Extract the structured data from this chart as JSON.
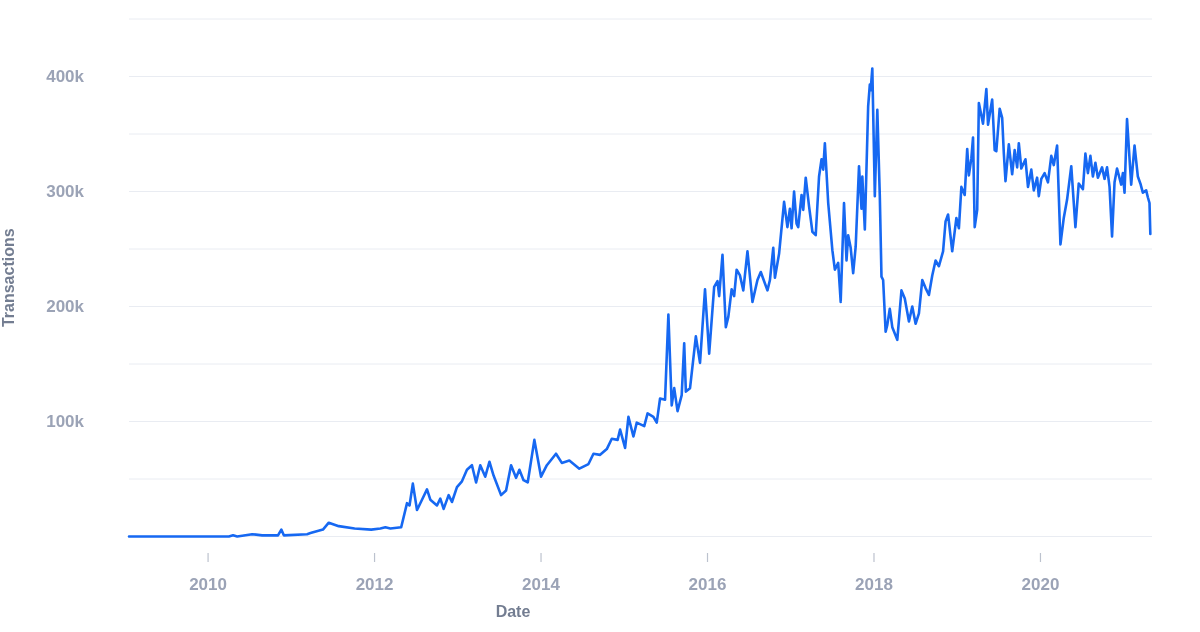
{
  "chart_data": {
    "type": "line",
    "xlabel": "Date",
    "ylabel": "Transactions",
    "x": [
      2009.05,
      2010.25,
      2010.3,
      2010.35,
      2010.53,
      2010.65,
      2010.84,
      2010.88,
      2010.91,
      2011.19,
      2011.23,
      2011.38,
      2011.45,
      2011.57,
      2011.76,
      2011.96,
      2012.07,
      2012.13,
      2012.19,
      2012.32,
      2012.39,
      2012.42,
      2012.46,
      2012.51,
      2012.57,
      2012.63,
      2012.67,
      2012.75,
      2012.79,
      2012.83,
      2012.89,
      2012.93,
      2012.99,
      2013.05,
      2013.11,
      2013.17,
      2013.22,
      2013.27,
      2013.33,
      2013.38,
      2013.43,
      2013.52,
      2013.58,
      2013.64,
      2013.7,
      2013.74,
      2013.79,
      2013.84,
      2013.92,
      2014.0,
      2014.07,
      2014.18,
      2014.25,
      2014.34,
      2014.46,
      2014.57,
      2014.63,
      2014.71,
      2014.79,
      2014.85,
      2014.92,
      2014.95,
      2015.01,
      2015.05,
      2015.11,
      2015.15,
      2015.24,
      2015.28,
      2015.35,
      2015.39,
      2015.43,
      2015.49,
      2015.53,
      2015.57,
      2015.6,
      2015.64,
      2015.69,
      2015.72,
      2015.74,
      2015.79,
      2015.86,
      2015.91,
      2015.97,
      2016.02,
      2016.08,
      2016.12,
      2016.14,
      2016.18,
      2016.22,
      2016.25,
      2016.29,
      2016.32,
      2016.35,
      2016.39,
      2016.43,
      2016.48,
      2016.54,
      2016.6,
      2016.64,
      2016.72,
      2016.75,
      2016.79,
      2016.81,
      2016.86,
      2016.88,
      2016.92,
      2016.96,
      2016.99,
      2017.01,
      2017.04,
      2017.07,
      2017.09,
      2017.13,
      2017.15,
      2017.18,
      2017.22,
      2017.26,
      2017.3,
      2017.34,
      2017.37,
      2017.39,
      2017.41,
      2017.45,
      2017.5,
      2017.53,
      2017.57,
      2017.6,
      2017.64,
      2017.67,
      2017.69,
      2017.72,
      2017.75,
      2017.78,
      2017.82,
      2017.85,
      2017.86,
      2017.89,
      2017.93,
      2017.95,
      2017.96,
      2017.98,
      2018.01,
      2018.04,
      2018.07,
      2018.09,
      2018.11,
      2018.14,
      2018.16,
      2018.19,
      2018.22,
      2018.28,
      2018.33,
      2018.37,
      2018.42,
      2018.46,
      2018.5,
      2018.54,
      2018.58,
      2018.62,
      2018.66,
      2018.7,
      2018.74,
      2018.78,
      2018.83,
      2018.86,
      2018.89,
      2018.94,
      2018.99,
      2019.02,
      2019.05,
      2019.09,
      2019.12,
      2019.14,
      2019.17,
      2019.19,
      2019.21,
      2019.24,
      2019.26,
      2019.31,
      2019.35,
      2019.37,
      2019.42,
      2019.45,
      2019.47,
      2019.51,
      2019.54,
      2019.56,
      2019.58,
      2019.62,
      2019.66,
      2019.69,
      2019.72,
      2019.74,
      2019.77,
      2019.82,
      2019.85,
      2019.89,
      2019.92,
      2019.96,
      2019.98,
      2020.01,
      2020.05,
      2020.09,
      2020.13,
      2020.16,
      2020.2,
      2020.24,
      2020.28,
      2020.32,
      2020.37,
      2020.42,
      2020.46,
      2020.51,
      2020.54,
      2020.57,
      2020.6,
      2020.63,
      2020.66,
      2020.69,
      2020.74,
      2020.77,
      2020.8,
      2020.83,
      2020.86,
      2020.89,
      2020.92,
      2020.97,
      2020.99,
      2021.01,
      2021.04,
      2021.09,
      2021.13,
      2021.17,
      2021.2,
      2021.23,
      2021.27,
      2021.29,
      2021.31,
      2021.32
    ],
    "series": [
      {
        "color": "#1668f2",
        "values": [
          0,
          0,
          1000,
          0,
          2000,
          1000,
          1000,
          6000,
          1000,
          2000,
          3000,
          6000,
          12000,
          9000,
          7000,
          6000,
          7000,
          8000,
          7000,
          8000,
          29000,
          27000,
          46000,
          23000,
          32000,
          41000,
          32000,
          27000,
          33000,
          24000,
          36000,
          30000,
          43000,
          48000,
          58000,
          62000,
          47000,
          62000,
          52000,
          65000,
          53000,
          36000,
          40000,
          62000,
          51000,
          58000,
          49000,
          47000,
          84000,
          52000,
          62000,
          72000,
          64000,
          66000,
          59000,
          63000,
          72000,
          71000,
          76000,
          85000,
          84000,
          93000,
          77000,
          104000,
          87000,
          99000,
          96000,
          107000,
          104000,
          99000,
          120000,
          119000,
          193000,
          114000,
          129000,
          109000,
          123000,
          168000,
          126000,
          129000,
          174000,
          151000,
          215000,
          159000,
          217000,
          222000,
          209000,
          245000,
          182000,
          191000,
          215000,
          209000,
          232000,
          227000,
          214000,
          248000,
          204000,
          223000,
          230000,
          214000,
          223000,
          251000,
          225000,
          246000,
          261000,
          291000,
          269000,
          285000,
          268000,
          300000,
          272000,
          269000,
          297000,
          284000,
          312000,
          287000,
          265000,
          262000,
          313000,
          328000,
          319000,
          342000,
          290000,
          249000,
          232000,
          238000,
          204000,
          290000,
          240000,
          262000,
          251000,
          229000,
          252000,
          322000,
          285000,
          313000,
          267000,
          374000,
          393000,
          388000,
          407000,
          296000,
          371000,
          296000,
          226000,
          223000,
          178000,
          184000,
          198000,
          182000,
          171000,
          214000,
          207000,
          187000,
          200000,
          185000,
          194000,
          223000,
          216000,
          210000,
          227000,
          240000,
          235000,
          248000,
          274000,
          280000,
          248000,
          277000,
          268000,
          304000,
          297000,
          337000,
          314000,
          329000,
          347000,
          269000,
          284000,
          377000,
          359000,
          389000,
          358000,
          380000,
          336000,
          335000,
          372000,
          364000,
          333000,
          309000,
          341000,
          315000,
          336000,
          321000,
          342000,
          320000,
          328000,
          304000,
          319000,
          301000,
          312000,
          296000,
          311000,
          316000,
          308000,
          331000,
          323000,
          340000,
          254000,
          277000,
          293000,
          322000,
          269000,
          307000,
          302000,
          333000,
          316000,
          331000,
          313000,
          325000,
          312000,
          321000,
          311000,
          321000,
          304000,
          261000,
          308000,
          320000,
          306000,
          316000,
          299000,
          363000,
          306000,
          340000,
          313000,
          307000,
          299000,
          301000,
          295000,
          290000,
          263000
        ]
      }
    ],
    "xlim": [
      2009.05,
      2021.34
    ],
    "xticks": [
      2010,
      2012,
      2014,
      2016,
      2018,
      2020
    ],
    "ylim": [
      0,
      450000
    ],
    "yticks": [
      {
        "value": 0,
        "label": null
      },
      {
        "value": 50000,
        "label": null
      },
      {
        "value": 100000,
        "label": "100k"
      },
      {
        "value": 150000,
        "label": null
      },
      {
        "value": 200000,
        "label": "200k"
      },
      {
        "value": 250000,
        "label": null
      },
      {
        "value": 300000,
        "label": "300k"
      },
      {
        "value": 350000,
        "label": null
      },
      {
        "value": 400000,
        "label": "400k"
      },
      {
        "value": 450000,
        "label": null
      }
    ],
    "grid": "y"
  }
}
